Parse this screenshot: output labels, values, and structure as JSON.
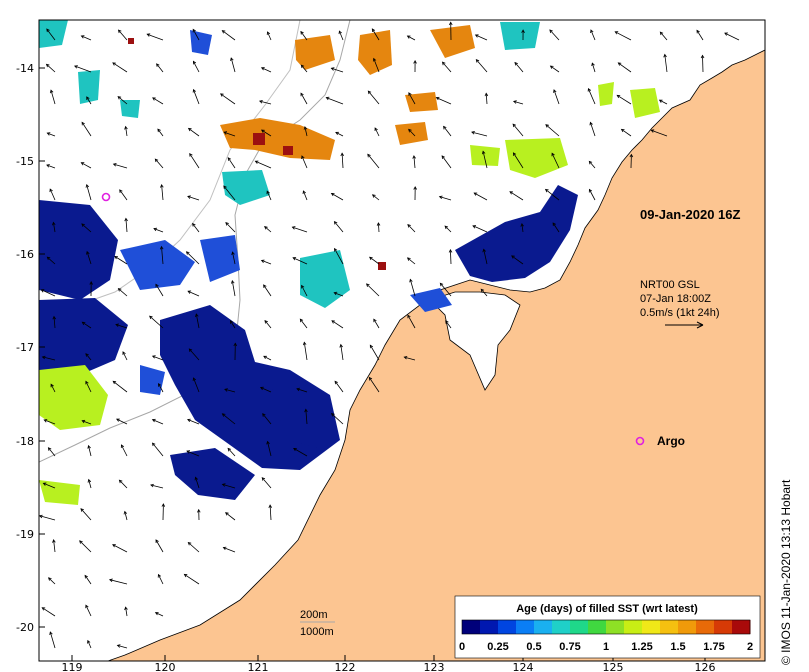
{
  "map": {
    "timestamp": "09-Jan-2020 16Z",
    "lat_labels": [
      "-14",
      "-15",
      "-16",
      "-17",
      "-18",
      "-19",
      "-20"
    ],
    "lon_labels": [
      "119",
      "120",
      "121",
      "122",
      "123",
      "124",
      "125",
      "126"
    ],
    "current_legend": {
      "line1": "NRT00 GSL",
      "line2": "07-Jan 18:00Z",
      "line3": "0.5m/s (1kt 24h)"
    },
    "argo_label": "Argo",
    "contours": {
      "label_200": "200m",
      "label_1000": "1000m"
    },
    "colorbar": {
      "title": "Age (days) of filled SST (wrt latest)",
      "ticks": [
        "0",
        "0.25",
        "0.5",
        "0.75",
        "1",
        "1.25",
        "1.5",
        "1.75",
        "2"
      ]
    },
    "credit": "© IMOS 11-Jan-2020 13:13 Hobart",
    "colors": {
      "land": "#fcc591",
      "deep_blue": "#0a1a8f",
      "mid_blue": "#1f4fd8",
      "cyan": "#1fc4c0",
      "green_yellow": "#b8f020",
      "orange": "#e5860f",
      "dark_red": "#9c1010",
      "argo": "#e020e0"
    }
  }
}
